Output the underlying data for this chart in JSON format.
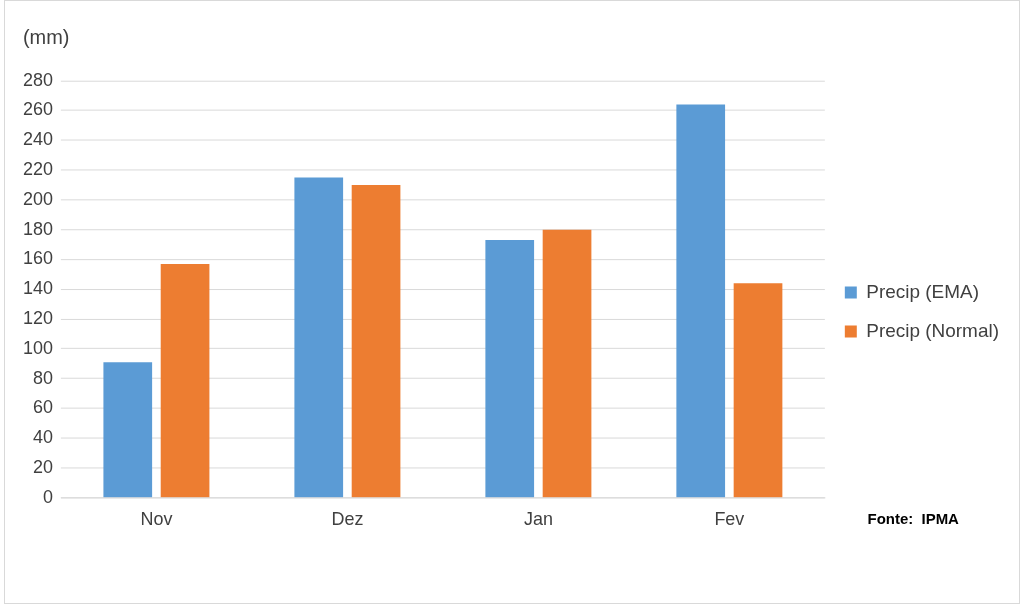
{
  "chart_data": {
    "type": "bar",
    "ylabel": "(mm)",
    "categories": [
      "Nov",
      "Dez",
      "Jan",
      "Fev"
    ],
    "series": [
      {
        "name": "Precip (EMA)",
        "color": "#5b9bd5",
        "values": [
          91,
          215,
          173,
          264
        ]
      },
      {
        "name": "Precip (Normal)",
        "color": "#ed7d31",
        "values": [
          157,
          210,
          180,
          144
        ]
      }
    ],
    "ylim": [
      0,
      280
    ],
    "yticks": [
      0,
      20,
      40,
      60,
      80,
      100,
      120,
      140,
      160,
      180,
      200,
      220,
      240,
      260,
      280
    ],
    "grid": "y",
    "legend": "right",
    "annotations": [
      "Fonte:  IPMA"
    ]
  }
}
